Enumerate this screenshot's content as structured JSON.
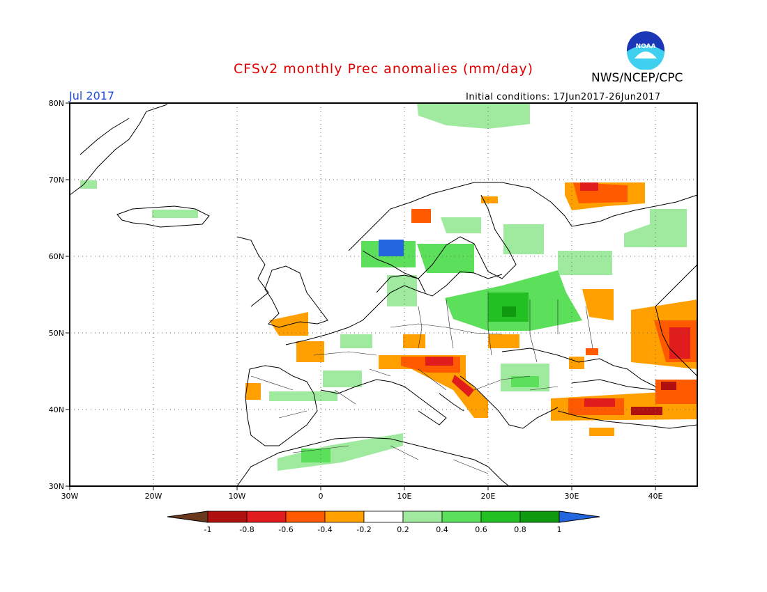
{
  "title": "CFSv2 monthly Prec anomalies (mm/day)",
  "month_label": "Jul 2017",
  "agency": "NWS/NCEP/CPC",
  "logo_text": "NOAA",
  "initial_conditions": "Initial conditions: 17Jun2017-26Jun2017",
  "axes": {
    "lat_labels": [
      "80N",
      "70N",
      "60N",
      "50N",
      "40N",
      "30N"
    ],
    "lon_labels": [
      "30W",
      "20W",
      "10W",
      "0",
      "10E",
      "20E",
      "30E",
      "40E"
    ],
    "lat_range": [
      30,
      80
    ],
    "lon_range": [
      -30,
      45
    ]
  },
  "colorbar": {
    "labels": [
      "-1",
      "-0.8",
      "-0.6",
      "-0.4",
      "-0.2",
      "0.2",
      "0.4",
      "0.6",
      "0.8",
      "1"
    ],
    "colors": [
      "#6b3a1e",
      "#b01010",
      "#e01c1c",
      "#ff5a00",
      "#ffa000",
      "#ffffff",
      "#a0eaa0",
      "#5ce05c",
      "#22c022",
      "#109a10",
      "#2266e0"
    ]
  },
  "anomaly_regions": [
    {
      "name": "Northern Scandinavia",
      "level": "0.2"
    },
    {
      "name": "Svalbard",
      "level": "0.2"
    },
    {
      "name": "Southwest Norway",
      "level": "1"
    },
    {
      "name": "Poland / Belarus",
      "level": "0.6"
    },
    {
      "name": "Kola Peninsula",
      "level": "-0.6"
    },
    {
      "name": "Southern Russia",
      "level": "-0.6"
    },
    {
      "name": "Adriatic / Balkans",
      "level": "-0.6"
    },
    {
      "name": "Turkey",
      "level": "-0.8"
    },
    {
      "name": "Northwest Africa",
      "level": "0.2"
    },
    {
      "name": "Iceland",
      "level": "0.2"
    }
  ]
}
